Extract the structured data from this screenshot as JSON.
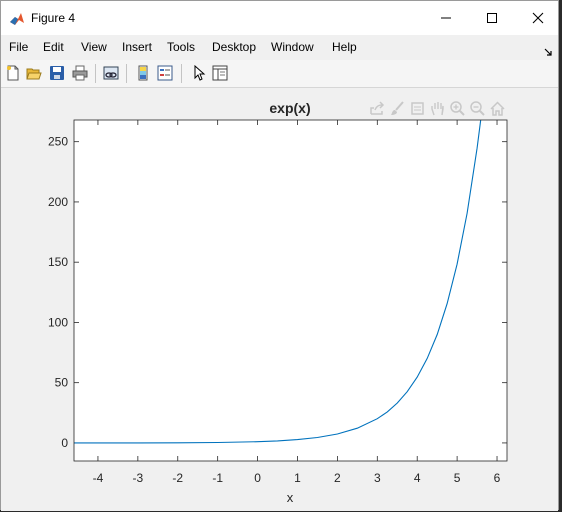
{
  "window": {
    "title": "Figure 4"
  },
  "menu": {
    "items": [
      "File",
      "Edit",
      "View",
      "Insert",
      "Tools",
      "Desktop",
      "Window",
      "Help"
    ]
  },
  "toolbar": {
    "buttons": [
      "new-figure-icon",
      "open-file-icon",
      "save-icon",
      "print-icon",
      "link-plot-icon",
      "colorbar-icon",
      "legend-icon",
      "edit-pointer-icon",
      "property-inspector-icon"
    ]
  },
  "axes_toolbar": {
    "buttons": [
      "export-icon",
      "brush-icon",
      "datatip-icon",
      "pan-icon",
      "zoom-in-icon",
      "zoom-out-icon",
      "home-icon"
    ]
  },
  "colors": {
    "line": "#0072bd",
    "axes_bg": "#ffffff",
    "figure_bg": "#f0f0f0",
    "matlab_logo": "#e4572e"
  },
  "chart_data": {
    "type": "line",
    "title": "exp(x)",
    "xlabel": "x",
    "ylabel": "",
    "function": "exp(x)",
    "xlim": [
      -4.6,
      6.25
    ],
    "ylim": [
      -15,
      268
    ],
    "xticks": [
      -4,
      -3,
      -2,
      -1,
      0,
      1,
      2,
      3,
      4,
      5,
      6
    ],
    "xtick_labels": [
      "-4",
      "-3",
      "-2",
      "-1",
      "0",
      "1",
      "2",
      "3",
      "4",
      "5",
      "6"
    ],
    "yticks": [
      0,
      50,
      100,
      150,
      200,
      250
    ],
    "ytick_labels": [
      "0",
      "50",
      "100",
      "150",
      "200",
      "250"
    ],
    "grid": false,
    "series": [
      {
        "x": [
          -4.6,
          -4,
          -3,
          -2,
          -1,
          0,
          0.5,
          1,
          1.5,
          2,
          2.5,
          3,
          3.25,
          3.5,
          3.75,
          4,
          4.25,
          4.5,
          4.75,
          5,
          5.25,
          5.5,
          5.59
        ],
        "y": [
          0.01,
          0.018,
          0.05,
          0.135,
          0.368,
          1,
          1.65,
          2.72,
          4.48,
          7.39,
          12.18,
          20.09,
          25.79,
          33.12,
          42.52,
          54.6,
          70.11,
          90.02,
          115.58,
          148.41,
          190.57,
          244.69,
          268
        ]
      }
    ]
  }
}
